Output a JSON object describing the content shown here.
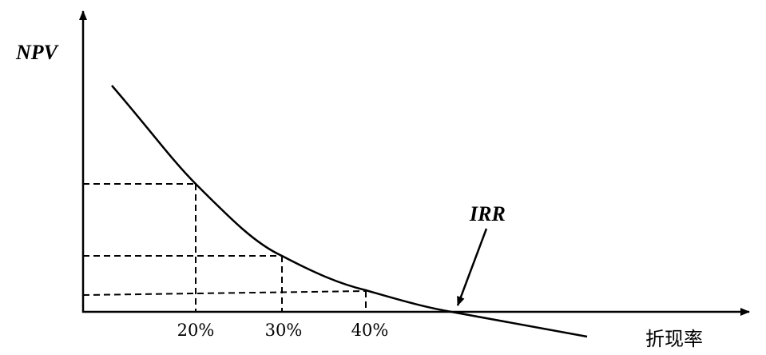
{
  "y_axis_label": "NPV",
  "x_axis_label": "折现率",
  "tick_labels": [
    "20%",
    "30%",
    "40%"
  ],
  "annotation": "IRR",
  "line_color": "#000000"
}
